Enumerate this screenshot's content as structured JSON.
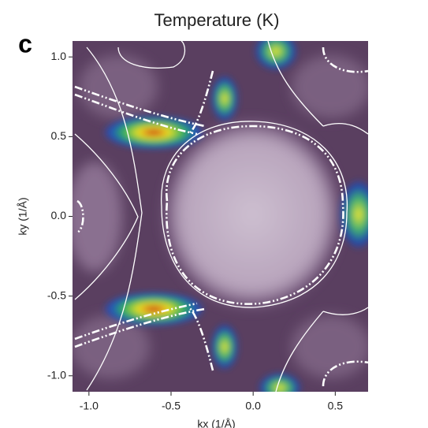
{
  "chart_data": {
    "type": "heatmap",
    "title": "Temperature (K)",
    "panel_label": "c",
    "x_label": "kx (1/Å)",
    "y_label": "ky (1/Å)",
    "xlim": [
      -1.1,
      0.7
    ],
    "ylim": [
      -1.1,
      1.1
    ],
    "xticks": [
      {
        "value": -1.0,
        "label": "-1.0"
      },
      -0.5,
      {
        "value": 0.0,
        "label": "0.0"
      },
      0.5
    ],
    "yticks": [
      {
        "value": 1.0,
        "label": "1.0"
      },
      0.5,
      {
        "value": 0.0,
        "label": "0.0"
      },
      -0.5,
      {
        "value": -1.0,
        "label": "-1.0"
      }
    ]
  }
}
